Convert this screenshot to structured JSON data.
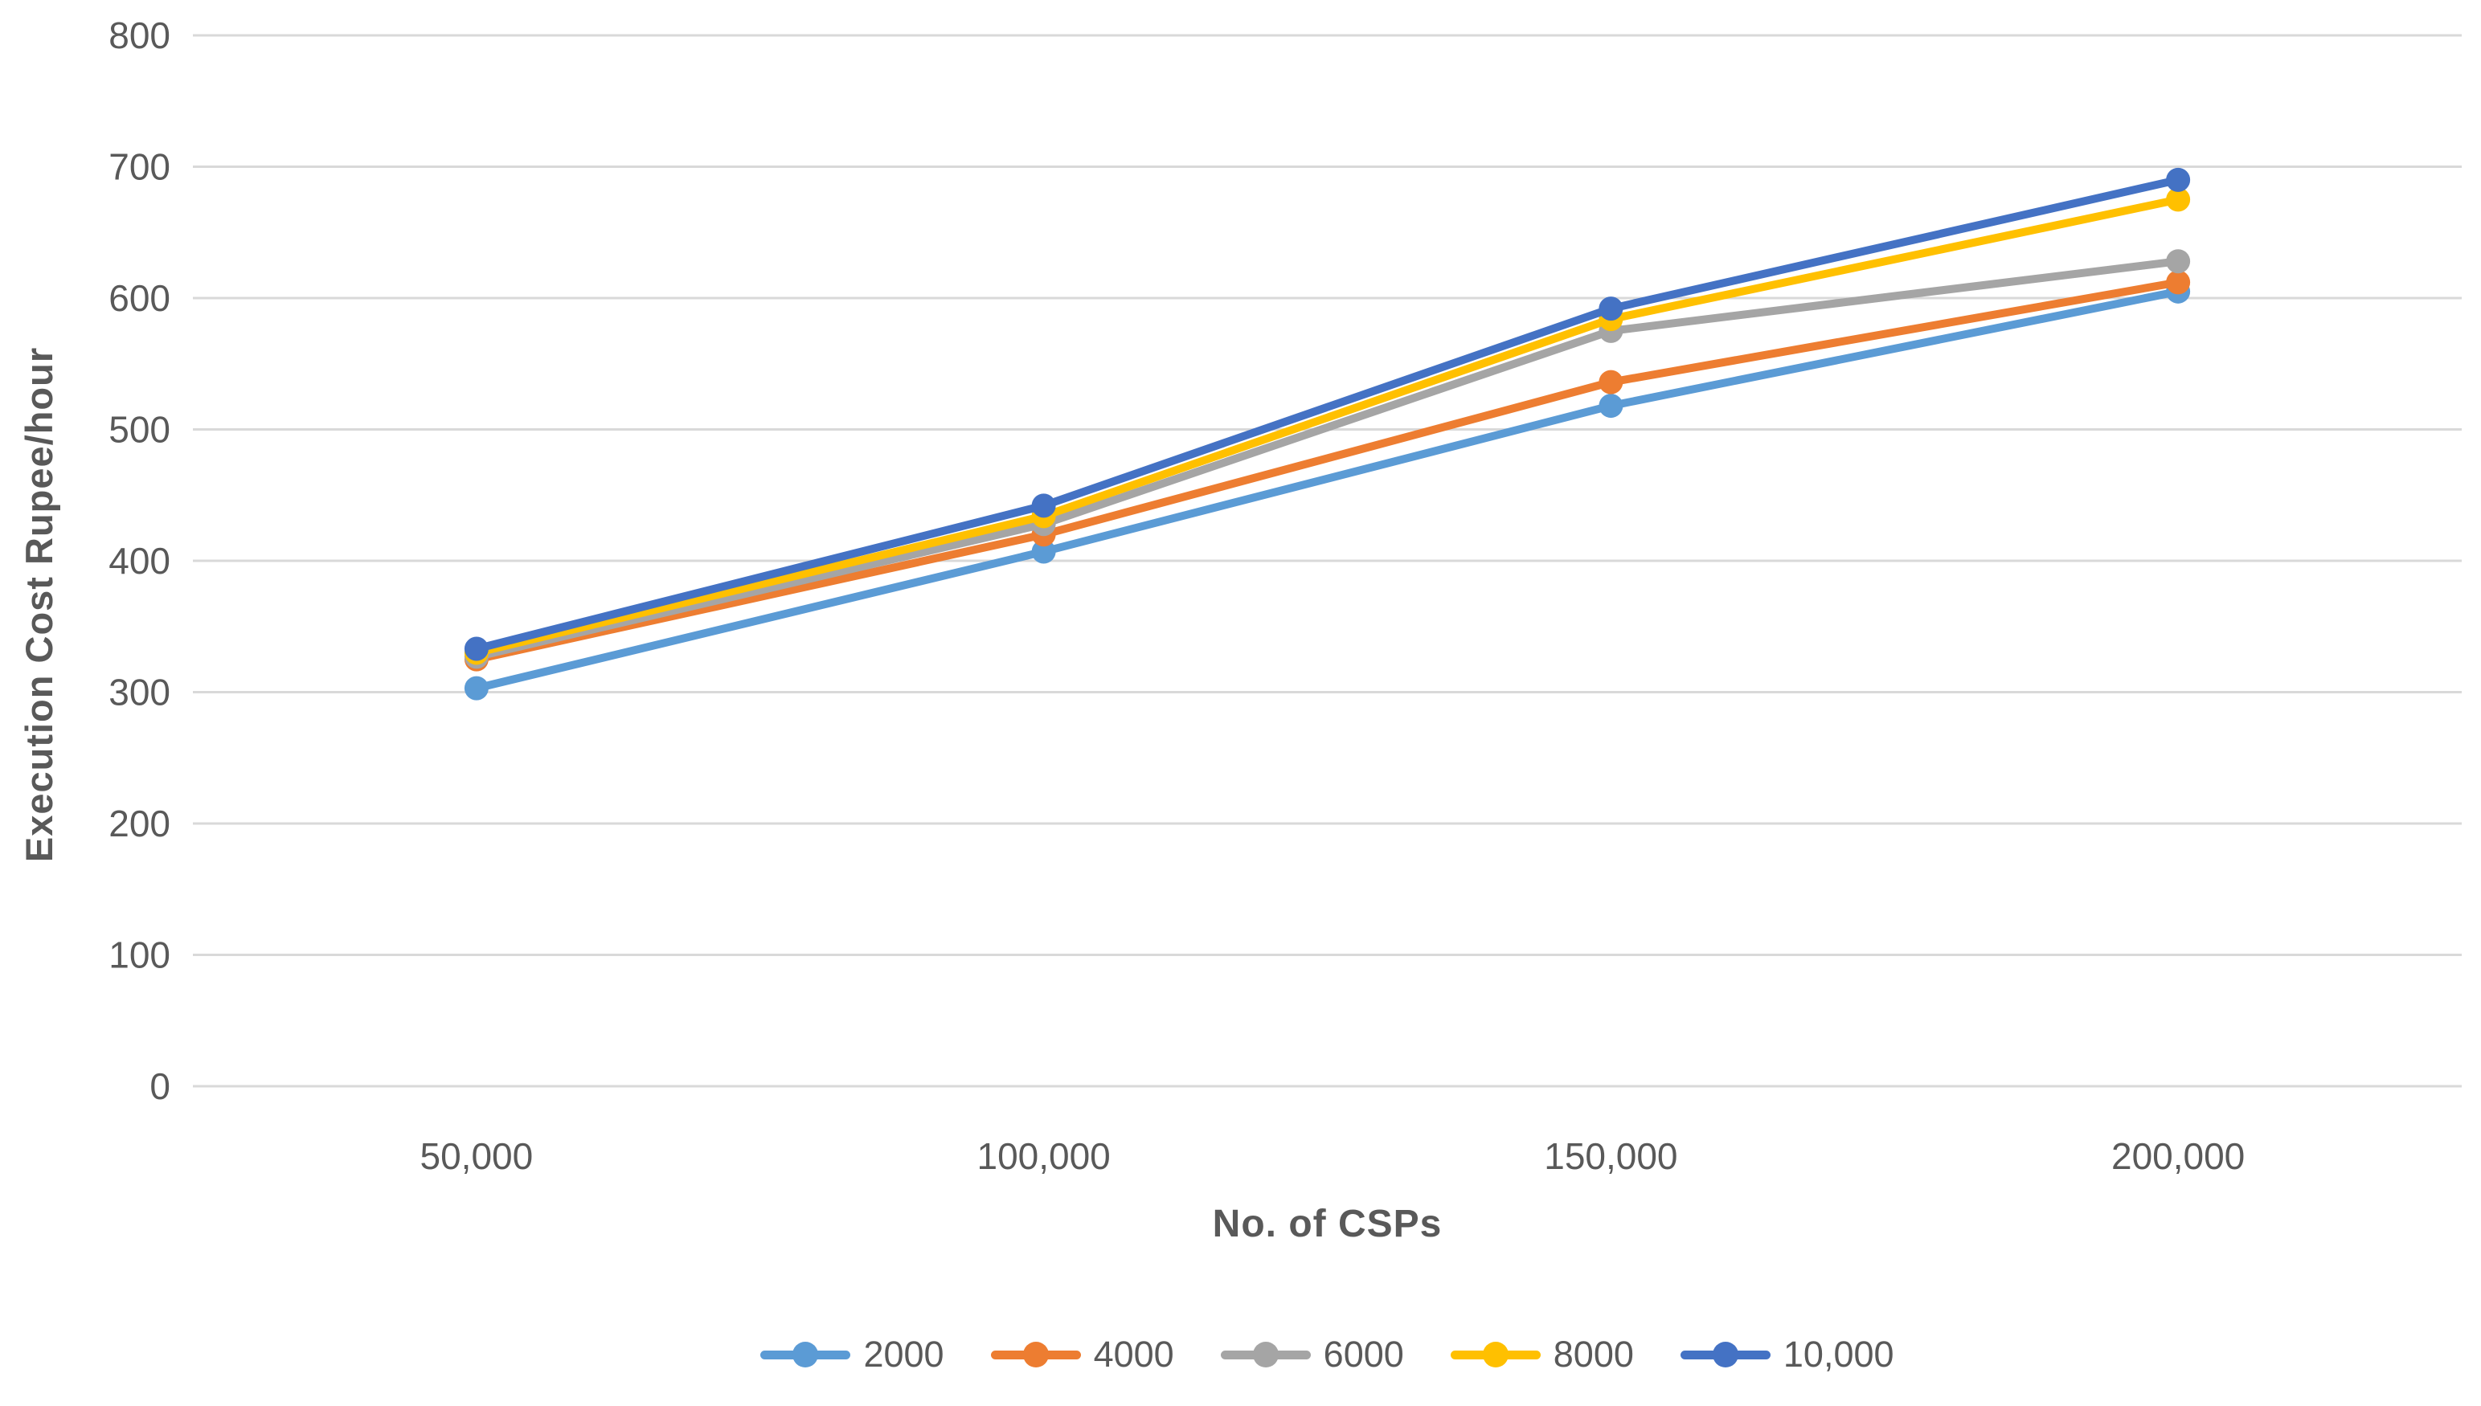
{
  "style": {
    "axis_text_color": "#595959",
    "gridline_color": "#D9D9D9",
    "background": "#ffffff"
  },
  "chart_data": {
    "type": "line",
    "title": "",
    "xlabel": "No. of CSPs",
    "ylabel": "Execution Cost Rupee/hour",
    "categories": [
      "50,000",
      "100,000",
      "150,000",
      "200,000"
    ],
    "series": [
      {
        "name": "2000",
        "color": "#5B9BD5",
        "values": [
          303,
          407,
          518,
          605
        ]
      },
      {
        "name": "4000",
        "color": "#ED7D31",
        "values": [
          325,
          420,
          536,
          612
        ]
      },
      {
        "name": "6000",
        "color": "#A5A5A5",
        "values": [
          327,
          428,
          575,
          628
        ]
      },
      {
        "name": "8000",
        "color": "#FFC000",
        "values": [
          330,
          434,
          584,
          675
        ]
      },
      {
        "name": "10,000",
        "color": "#4472C4",
        "values": [
          333,
          442,
          592,
          690
        ]
      }
    ],
    "y_ticks": [
      0,
      100,
      200,
      300,
      400,
      500,
      600,
      700,
      800
    ],
    "ylim": [
      0,
      800
    ],
    "grid": true,
    "legend_position": "bottom",
    "marker": "circle"
  }
}
